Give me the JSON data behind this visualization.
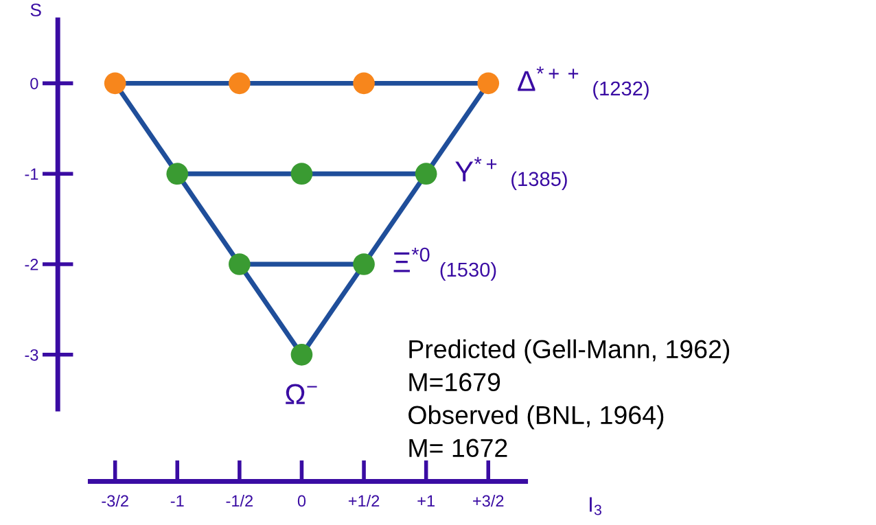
{
  "chart_data": {
    "type": "scatter",
    "xlabel": "I$_{3}$",
    "ylabel": "S",
    "xlim": [
      -1.7,
      1.8
    ],
    "ylim": [
      -3.6,
      0.7
    ],
    "xticks": [
      {
        "value": -1.5,
        "label": "-3/2"
      },
      -1,
      {
        "value": -0.5,
        "label": "-1/2"
      },
      0,
      {
        "value": 0.5,
        "label": "+1/2"
      },
      {
        "value": 1,
        "label": "+1"
      },
      {
        "value": 1.5,
        "label": "+3/2"
      }
    ],
    "yticks": [
      0,
      -1,
      -2,
      -3
    ],
    "grid": false,
    "marker": "circle",
    "series": [
      {
        "type": "line",
        "marker": "none",
        "color": "#1f4e9a",
        "x": [
          -1.5,
          1.5
        ],
        "values": [
          0,
          0
        ]
      },
      {
        "type": "line",
        "marker": "none",
        "color": "#1f4e9a",
        "x": [
          -1,
          1
        ],
        "values": [
          -1,
          -1
        ]
      },
      {
        "type": "line",
        "marker": "none",
        "color": "#1f4e9a",
        "x": [
          -0.5,
          0.5
        ],
        "values": [
          -2,
          -2
        ]
      },
      {
        "type": "line",
        "marker": "none",
        "color": "#1f4e9a",
        "x": [
          -1.5,
          0
        ],
        "values": [
          0,
          -3
        ]
      },
      {
        "type": "line",
        "marker": "none",
        "color": "#1f4e9a",
        "x": [
          1.5,
          0
        ],
        "values": [
          0,
          -3
        ]
      },
      {
        "color": "#f7861c",
        "x": [
          -1.5,
          -0.5,
          0.5,
          1.5
        ],
        "values": [
          0,
          0,
          0,
          0
        ]
      },
      {
        "color": "#3a9b32",
        "x": [
          -1,
          0,
          1
        ],
        "values": [
          -1,
          -1,
          -1
        ]
      },
      {
        "color": "#3a9b32",
        "x": [
          -0.5,
          0.5
        ],
        "values": [
          -2,
          -2
        ]
      },
      {
        "color": "#3a9b32",
        "x": [
          0
        ],
        "values": [
          -3
        ]
      }
    ],
    "annotations": [
      {
        "text": "Δ$^{*++}$ $_{(1232)}$",
        "x": 1.5,
        "y": 0
      },
      {
        "text": "Y$^{*+}$ $_{(1385)}$",
        "x": 1,
        "y": -1
      },
      {
        "text": "Ξ$^{*0}$ $_{(1530)}$",
        "x": 0.5,
        "y": -2
      },
      {
        "text": "Ω$^{−}$",
        "x": 0,
        "y": -3
      },
      "Predicted (Gell-Mann, 1962)",
      "M=1679",
      "Observed (BNL, 1964)",
      "M= 1672"
    ]
  }
}
